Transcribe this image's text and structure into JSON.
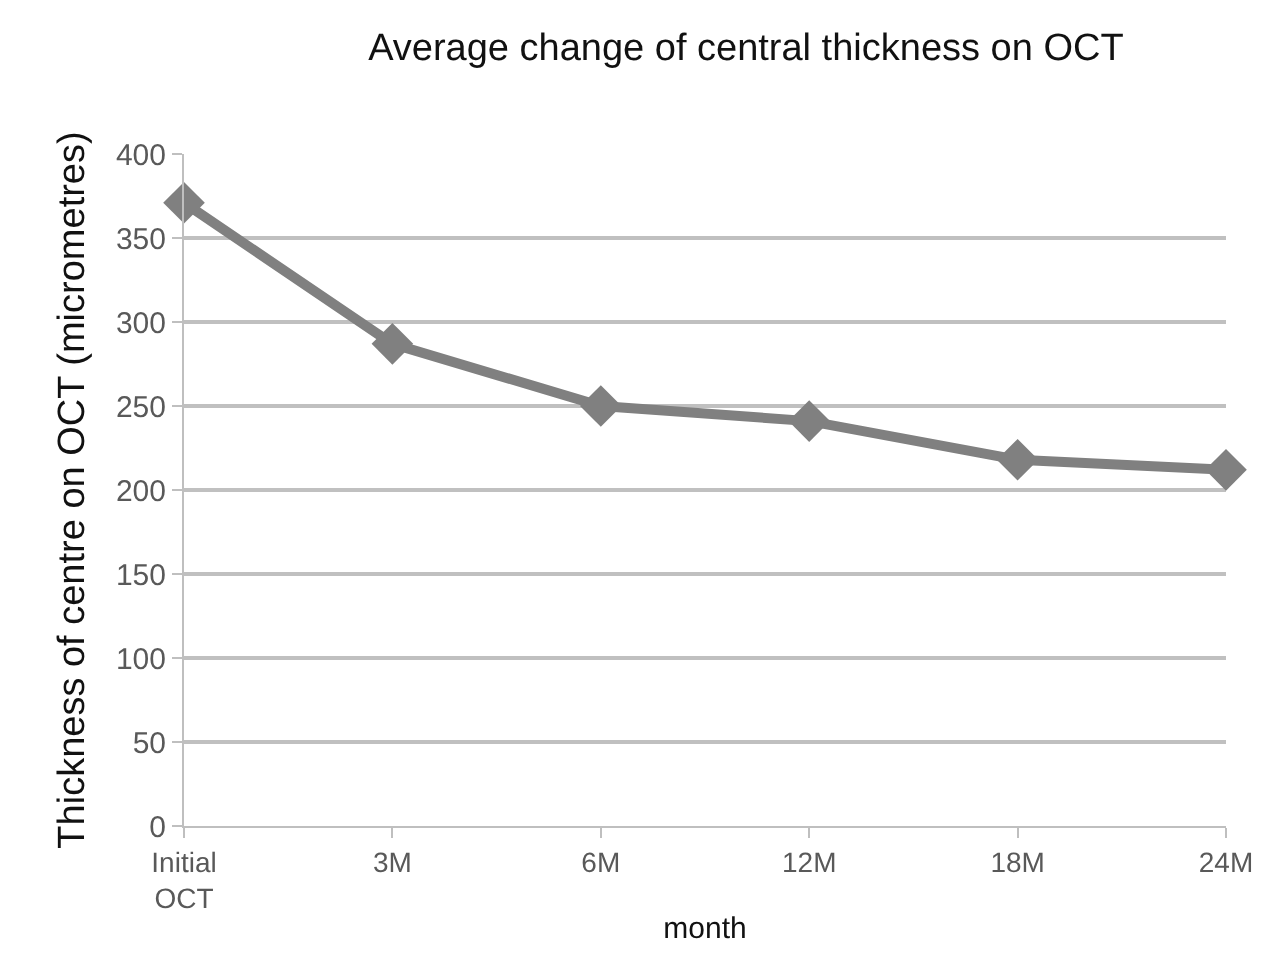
{
  "chart_data": {
    "type": "line",
    "title": "Average change of central thickness on OCT",
    "xlabel": "month",
    "ylabel": "Thickness of centre on OCT (micrometres)",
    "categories": [
      "Initial\nOCT",
      "3M",
      "6M",
      "12M",
      "18M",
      "24M"
    ],
    "series": [
      {
        "color": "#808080",
        "values": [
          371,
          287,
          250,
          241,
          218,
          212
        ]
      }
    ],
    "ylim": [
      0,
      400
    ],
    "yticks": [
      0,
      50,
      100,
      150,
      200,
      250,
      300,
      350,
      400
    ],
    "grid": "y",
    "marker": "diamond",
    "line_style": "solid"
  }
}
